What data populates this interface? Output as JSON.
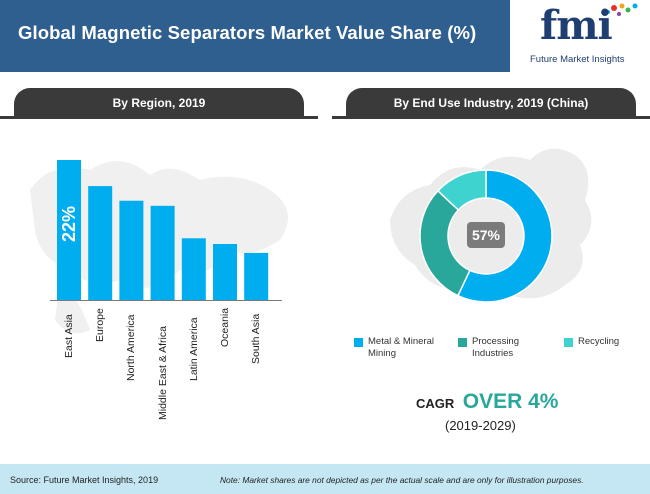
{
  "header": {
    "title": "Global Magnetic Separators Market Value Share (%)",
    "logo_word": "fmi",
    "logo_sub": "Future Market Insights"
  },
  "tabs": {
    "left": "By Region, 2019",
    "right": "By End Use Industry, 2019  (China)"
  },
  "chart_data": [
    {
      "type": "bar",
      "title": "By Region, 2019",
      "categories": [
        "East Asia",
        "Europe",
        "North America",
        "Middle East & Africa",
        "Latin America",
        "Oceania",
        "South Asia"
      ],
      "values": [
        22,
        17.9,
        15.6,
        14.8,
        9.7,
        8.8,
        7.4
      ],
      "data_labels": [
        "22%",
        null,
        null,
        null,
        null,
        null,
        null
      ],
      "ylim": [
        0,
        25
      ],
      "bar_color": "#00aeef",
      "grid": false
    },
    {
      "type": "pie",
      "title": "By End Use Industry, 2019  (China)",
      "categories": [
        "Metal & Mineral Mining",
        "Processing Industries",
        "Recycling"
      ],
      "values": [
        57,
        30,
        13
      ],
      "colors": [
        "#00aeef",
        "#2aa79b",
        "#3fd3d0"
      ],
      "center_label": "57%",
      "legend_position": "bottom"
    }
  ],
  "cagr": {
    "label": "CAGR",
    "value": "OVER 4%",
    "period": "(2019-2029)"
  },
  "footer": {
    "source": "Source: Future Market Insights, 2019",
    "note": "Note: Market shares are not depicted as per the actual scale and are only for illustration purposes."
  }
}
